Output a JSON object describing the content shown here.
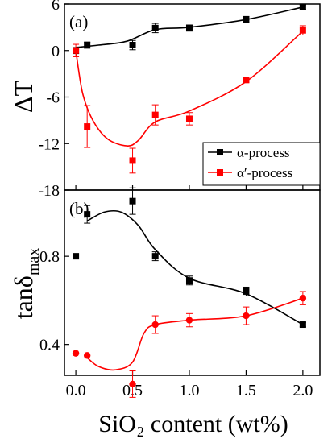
{
  "chart_data": [
    {
      "type": "scatter",
      "panel_label": "(a)",
      "ylabel": "ΔT",
      "ylim": [
        -18,
        6
      ],
      "yticks": [
        "6",
        "0",
        "-6",
        "-12",
        "-18"
      ],
      "yticks_values": [
        6,
        0,
        -6,
        -12,
        -18
      ],
      "xlim": [
        -0.1,
        2.15
      ],
      "grid": false,
      "legend_position": "lower-right",
      "series": [
        {
          "name": "α-process",
          "color": "#000000",
          "marker": "square",
          "x": [
            0.0,
            0.1,
            0.5,
            0.7,
            1.0,
            1.5,
            2.0
          ],
          "y": [
            0.0,
            0.7,
            0.7,
            2.9,
            2.9,
            4.0,
            5.6
          ],
          "err": [
            0.4,
            0.4,
            0.6,
            0.6,
            0.4,
            0.4,
            0.3
          ],
          "fit": [
            [
              0.0,
              0.4
            ],
            [
              0.2,
              0.7
            ],
            [
              0.45,
              1.2
            ],
            [
              0.7,
              2.7
            ],
            [
              1.0,
              3.0
            ],
            [
              1.5,
              4.0
            ],
            [
              2.0,
              5.6
            ]
          ]
        },
        {
          "name": "α′-process",
          "color": "#ff0000",
          "marker": "square",
          "x": [
            0.0,
            0.1,
            0.5,
            0.7,
            1.0,
            1.5,
            2.0
          ],
          "y": [
            0.0,
            -9.8,
            -14.2,
            -8.3,
            -8.8,
            -3.8,
            2.6
          ],
          "err": [
            0.8,
            2.7,
            1.6,
            1.3,
            0.8,
            0.3,
            0.6
          ],
          "fit": [
            [
              0.0,
              0.0
            ],
            [
              0.06,
              -5.5
            ],
            [
              0.15,
              -9.0
            ],
            [
              0.28,
              -11.4
            ],
            [
              0.45,
              -12.3
            ],
            [
              0.55,
              -11.6
            ],
            [
              0.7,
              -9.2
            ],
            [
              1.0,
              -7.8
            ],
            [
              1.5,
              -4.0
            ],
            [
              2.0,
              2.5
            ]
          ]
        }
      ]
    },
    {
      "type": "scatter",
      "panel_label": "(b)",
      "ylabel": "tanδ",
      "ylabel_sub": "max",
      "xlabel": "SiO₂ content (wt%)",
      "ylim": [
        0.26,
        1.1
      ],
      "yticks": [
        "0.8",
        "0.4"
      ],
      "yticks_values": [
        0.8,
        0.4
      ],
      "xlim": [
        -0.1,
        2.15
      ],
      "xticks": [
        "0.0",
        "0.5",
        "1.0",
        "1.5",
        "2.0"
      ],
      "xticks_values": [
        0.0,
        0.5,
        1.0,
        1.5,
        2.0
      ],
      "grid": false,
      "series": [
        {
          "color": "#000000",
          "marker": "square",
          "x": [
            0.0,
            0.1,
            0.5,
            0.7,
            1.0,
            1.5,
            2.0
          ],
          "y": [
            0.8,
            0.99,
            1.05,
            0.8,
            0.69,
            0.64,
            0.49
          ],
          "err": [
            0.0,
            0.04,
            0.06,
            0.02,
            0.02,
            0.02,
            0.01
          ],
          "fit": [
            [
              0.1,
              0.96
            ],
            [
              0.25,
              1.0
            ],
            [
              0.4,
              1.0
            ],
            [
              0.55,
              0.94
            ],
            [
              0.7,
              0.83
            ],
            [
              1.0,
              0.7
            ],
            [
              1.5,
              0.63
            ],
            [
              2.0,
              0.49
            ]
          ]
        },
        {
          "color": "#ff0000",
          "marker": "circle",
          "x": [
            0.0,
            0.1,
            0.5,
            0.7,
            1.0,
            1.5,
            2.0
          ],
          "y": [
            0.36,
            0.35,
            0.22,
            0.49,
            0.51,
            0.53,
            0.61
          ],
          "err": [
            0.0,
            0.0,
            0.06,
            0.04,
            0.03,
            0.04,
            0.03
          ],
          "fit": [
            [
              0.1,
              0.34
            ],
            [
              0.2,
              0.3
            ],
            [
              0.35,
              0.285
            ],
            [
              0.5,
              0.32
            ],
            [
              0.6,
              0.45
            ],
            [
              0.7,
              0.49
            ],
            [
              1.0,
              0.51
            ],
            [
              1.5,
              0.53
            ],
            [
              2.0,
              0.61
            ]
          ]
        }
      ]
    }
  ]
}
